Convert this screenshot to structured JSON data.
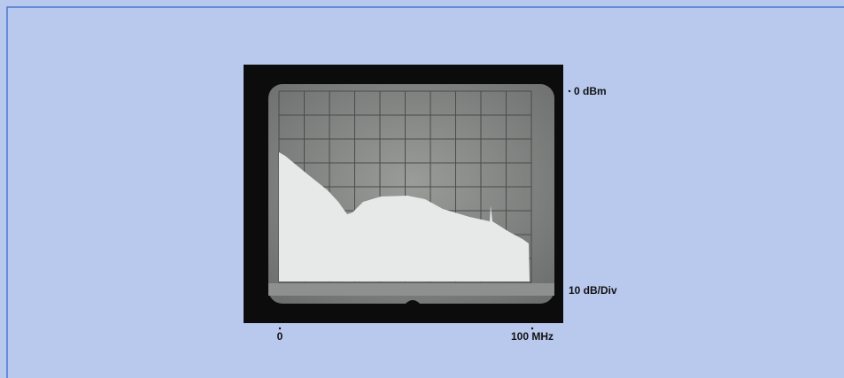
{
  "labels": {
    "reference_level": "0 dBm",
    "scale": "10 dB/Div",
    "x_start": "0",
    "x_end": "100 MHz"
  }
}
